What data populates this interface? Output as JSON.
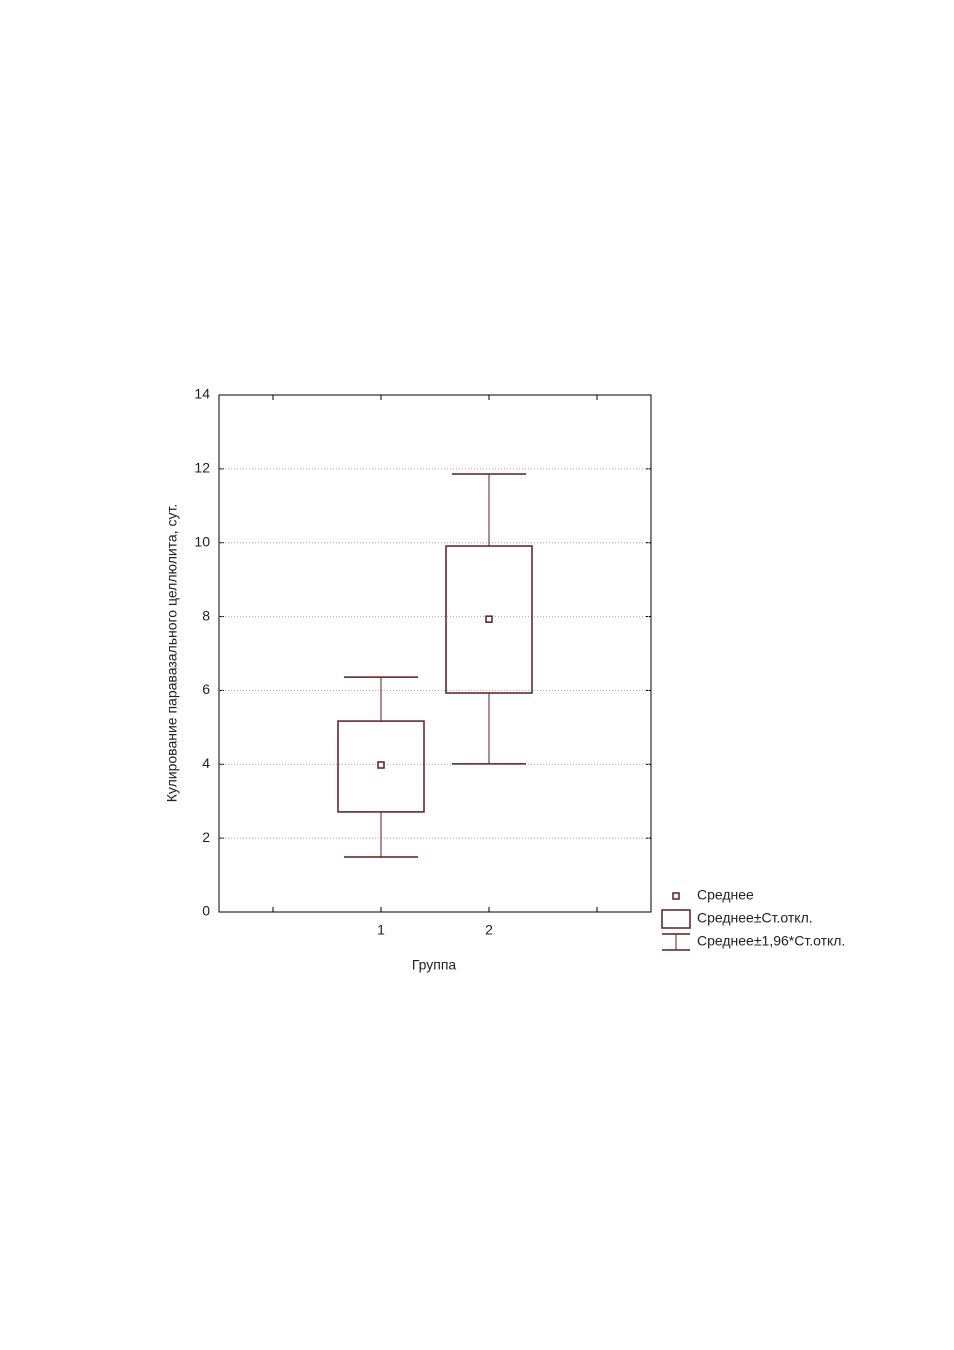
{
  "chart_data": {
    "type": "box",
    "x_label": "Группа",
    "y_label": "Кулирование паравазального целлюлита, сут.",
    "categories": [
      null,
      "1",
      "2",
      null
    ],
    "mean": [
      null,
      3.98,
      7.93,
      null
    ],
    "box_low": [
      null,
      2.71,
      5.93,
      null
    ],
    "box_high": [
      null,
      5.17,
      9.91,
      null
    ],
    "whisker_low": [
      null,
      1.49,
      4.01,
      null
    ],
    "whisker_high": [
      null,
      6.36,
      11.86,
      null
    ],
    "ylim": [
      0,
      14
    ],
    "yticks": [
      0,
      2,
      4,
      6,
      8,
      10,
      12,
      14
    ],
    "grid": true,
    "color": "#5e1c1c",
    "legend": [
      "Среднее",
      "Среднее±Ст.откл.",
      "Среднее±1,96*Ст.откл."
    ]
  }
}
